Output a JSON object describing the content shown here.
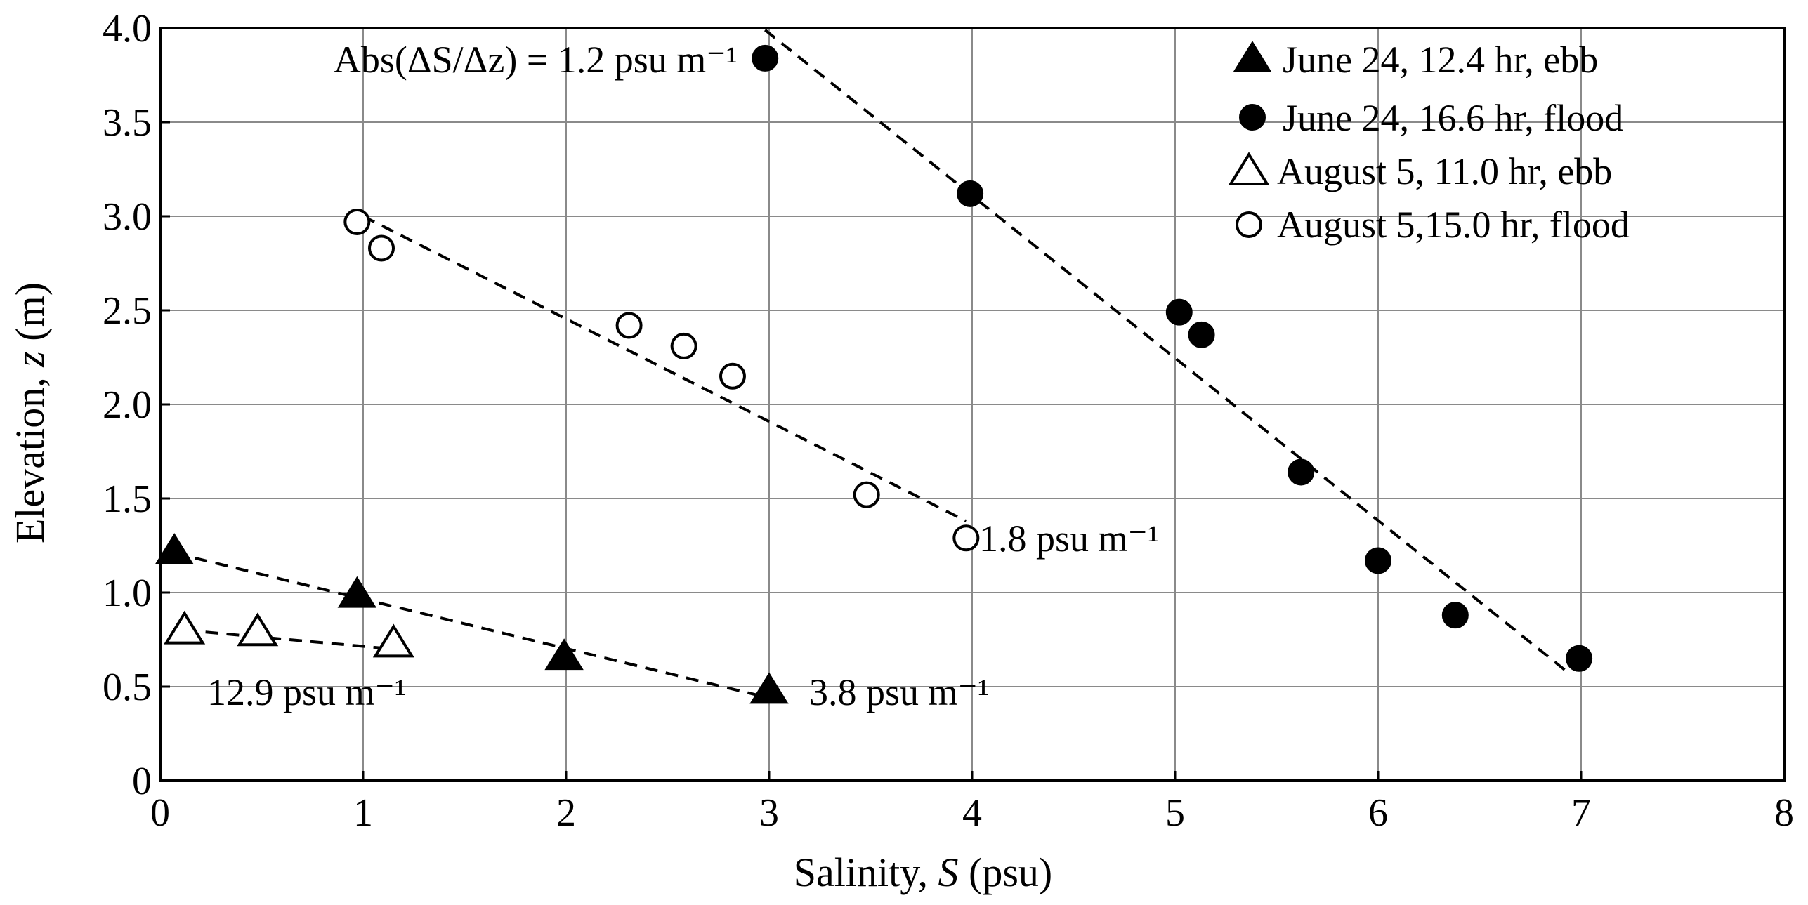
{
  "chart_data": {
    "type": "scatter",
    "title": "",
    "xlabel": "Salinity, ",
    "xlabel_var": "S",
    "xlabel_unit": " (psu)",
    "ylabel": "Elevation, ",
    "ylabel_var": "z",
    "ylabel_unit": " (m)",
    "xlim": [
      0,
      8
    ],
    "ylim": [
      0,
      4
    ],
    "grid": true,
    "legend_position": "top-right",
    "x_ticks": [
      0,
      1,
      2,
      3,
      4,
      5,
      6,
      7,
      8
    ],
    "x_tick_labels": [
      "0",
      "1",
      "2",
      "3",
      "4",
      "5",
      "6",
      "7",
      "8"
    ],
    "y_ticks": [
      0,
      0.5,
      1,
      1.5,
      2,
      2.5,
      3,
      3.5,
      4
    ],
    "y_tick_labels": [
      "0",
      "0.5",
      "1.0",
      "1.5",
      "2.0",
      "2.5",
      "3.0",
      "3.5",
      "4.0"
    ],
    "series": [
      {
        "name": "June 24, 12.4 hr, ebb",
        "marker": "filled-triangle",
        "points": [
          [
            0.07,
            1.22
          ],
          [
            0.97,
            0.99
          ],
          [
            1.99,
            0.66
          ],
          [
            3.0,
            0.48
          ]
        ],
        "fit": [
          [
            0.07,
            1.21
          ],
          [
            3.0,
            0.44
          ]
        ],
        "gradient_label": "3.8 psu m⁻¹"
      },
      {
        "name": "June 24, 16.6 hr, flood",
        "marker": "filled-circle",
        "points": [
          [
            2.98,
            3.84
          ],
          [
            3.99,
            3.12
          ],
          [
            5.02,
            2.49
          ],
          [
            5.13,
            2.37
          ],
          [
            5.62,
            1.64
          ],
          [
            6.0,
            1.17
          ],
          [
            6.38,
            0.88
          ],
          [
            6.99,
            0.65
          ]
        ],
        "fit": [
          [
            2.98,
            3.99
          ],
          [
            6.93,
            0.58
          ]
        ],
        "gradient_label": "Abs(ΔS/Δz) = 1.2 psu m⁻¹"
      },
      {
        "name": "August 5, 11.0 hr, ebb",
        "marker": "open-triangle",
        "points": [
          [
            0.12,
            0.8
          ],
          [
            0.48,
            0.79
          ],
          [
            1.15,
            0.73
          ]
        ],
        "fit": [
          [
            0.12,
            0.8
          ],
          [
            1.15,
            0.7
          ]
        ],
        "gradient_label": "12.9 psu m⁻¹"
      },
      {
        "name": "August 5,15.0 hr, flood",
        "marker": "open-circle",
        "points": [
          [
            0.97,
            2.97
          ],
          [
            1.09,
            2.83
          ],
          [
            2.31,
            2.42
          ],
          [
            2.58,
            2.31
          ],
          [
            2.82,
            2.15
          ],
          [
            3.48,
            1.52
          ],
          [
            3.97,
            1.29
          ]
        ],
        "fit": [
          [
            1.0,
            3.0
          ],
          [
            3.97,
            1.38
          ]
        ],
        "gradient_label": "1.8 psu m⁻¹"
      }
    ]
  }
}
